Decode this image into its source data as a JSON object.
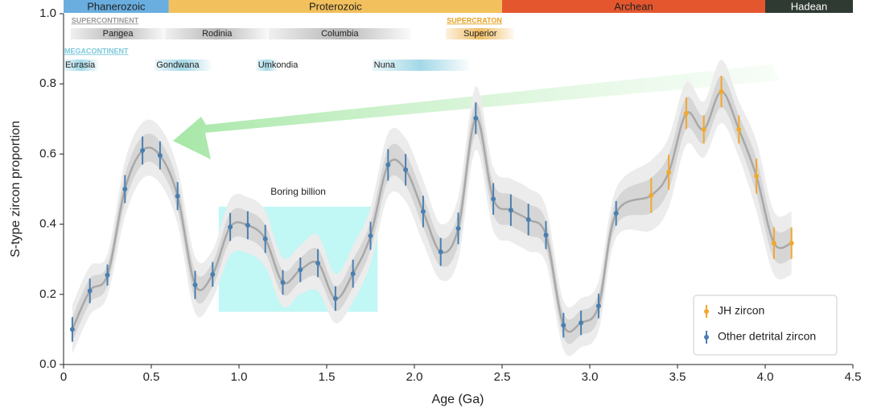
{
  "chart_data": {
    "type": "errorbar",
    "xlabel": "Age (Ga)",
    "ylabel": "S-type zircon proportion",
    "xlim": [
      0,
      4.5
    ],
    "ylim": [
      0,
      1.0
    ],
    "xticks": [
      0,
      {
        "value": 0.5,
        "label": "0.5"
      },
      {
        "value": 1.0,
        "label": "1.0"
      },
      {
        "value": 1.5,
        "label": "1.5"
      },
      {
        "value": 2.0,
        "label": "2.0"
      },
      {
        "value": 2.5,
        "label": "2.5"
      },
      {
        "value": 3.0,
        "label": "3.0"
      },
      {
        "value": 3.5,
        "label": "3.5"
      },
      {
        "value": 4.0,
        "label": "4.0"
      },
      {
        "value": 4.5,
        "label": "4.5"
      }
    ],
    "yticks": [
      {
        "value": 0,
        "label": "0.0"
      },
      {
        "value": 0.2,
        "label": "0.2"
      },
      {
        "value": 0.4,
        "label": "0.4"
      },
      {
        "value": 0.6,
        "label": "0.6"
      },
      {
        "value": 0.8,
        "label": "0.8"
      },
      {
        "value": 1.0,
        "label": "1.0"
      }
    ],
    "legend": "lower right",
    "series": [
      {
        "name": "Other detrital zircon",
        "color": "#4a7fb0",
        "x": [
          0.05,
          0.15,
          0.25,
          0.35,
          0.45,
          0.55,
          0.65,
          0.75,
          0.85,
          0.95,
          1.05,
          1.15,
          1.25,
          1.35,
          1.45,
          1.55,
          1.65,
          1.75,
          1.85,
          1.95,
          2.05,
          2.15,
          2.25,
          2.35,
          2.45,
          2.55,
          2.65,
          2.75,
          2.85,
          2.95,
          3.05,
          3.15
        ],
        "values": [
          0.1,
          0.21,
          0.255,
          0.5,
          0.61,
          0.596,
          0.48,
          0.227,
          0.257,
          0.392,
          0.397,
          0.358,
          0.234,
          0.27,
          0.289,
          0.188,
          0.259,
          0.367,
          0.569,
          0.555,
          0.436,
          0.321,
          0.388,
          0.702,
          0.472,
          0.44,
          0.413,
          0.369,
          0.112,
          0.119,
          0.167,
          0.431
        ],
        "errors": [
          0.035,
          0.035,
          0.03,
          0.04,
          0.04,
          0.04,
          0.04,
          0.04,
          0.035,
          0.04,
          0.04,
          0.04,
          0.035,
          0.035,
          0.04,
          0.035,
          0.04,
          0.04,
          0.045,
          0.045,
          0.045,
          0.04,
          0.045,
          0.045,
          0.045,
          0.045,
          0.045,
          0.04,
          0.035,
          0.035,
          0.035,
          0.035
        ]
      },
      {
        "name": "JH zircon",
        "color": "#f0a830",
        "x": [
          3.35,
          3.45,
          3.55,
          3.65,
          3.75,
          3.85,
          3.95,
          4.05,
          4.15
        ],
        "values": [
          0.482,
          0.548,
          0.716,
          0.67,
          0.778,
          0.67,
          0.537,
          0.346,
          0.346
        ],
        "errors": [
          0.05,
          0.05,
          0.045,
          0.04,
          0.045,
          0.04,
          0.05,
          0.045,
          0.045
        ]
      }
    ],
    "eons": [
      {
        "name": "Phanerozoic",
        "start": 0,
        "end": 0.6,
        "color": "#6aaee0"
      },
      {
        "name": "Proterozoic",
        "start": 0.6,
        "end": 2.5,
        "color": "#f2c05c"
      },
      {
        "name": "Archean",
        "start": 2.5,
        "end": 4.0,
        "color": "#e4572e"
      },
      {
        "name": "Hadean",
        "start": 4.0,
        "end": 4.5,
        "color": "#2f3a33"
      }
    ],
    "supercontinents": {
      "title": "SUPERCONTINENT",
      "color": "#9a9a9a",
      "items": [
        {
          "name": "Pangea",
          "start": 0.04,
          "end": 0.58
        },
        {
          "name": "Rodinia",
          "start": 0.58,
          "end": 1.17
        },
        {
          "name": "Columbia",
          "start": 1.17,
          "end": 1.98
        }
      ]
    },
    "supercratons": {
      "title": "SUPERCRATON",
      "color": "#e8a020",
      "items": [
        {
          "name": "Superior",
          "start": 2.18,
          "end": 2.57
        }
      ]
    },
    "megacontinents": {
      "title": "MEGACONTINENT",
      "color": "#7cc8dc",
      "items": [
        {
          "name": "Eurasia",
          "start": 0,
          "end": 0.2
        },
        {
          "name": "Gondwana",
          "start": 0.52,
          "end": 0.84
        },
        {
          "name": "Umkondia",
          "start": 1.1,
          "end": 1.22
        },
        {
          "name": "Nuna",
          "start": 1.76,
          "end": 2.31
        }
      ]
    },
    "annotations": [
      {
        "text": "Boring billion",
        "xrange": [
          0.885,
          1.79
        ],
        "yrange": [
          0.15,
          0.45
        ],
        "color": "#8ef0ec"
      }
    ]
  }
}
